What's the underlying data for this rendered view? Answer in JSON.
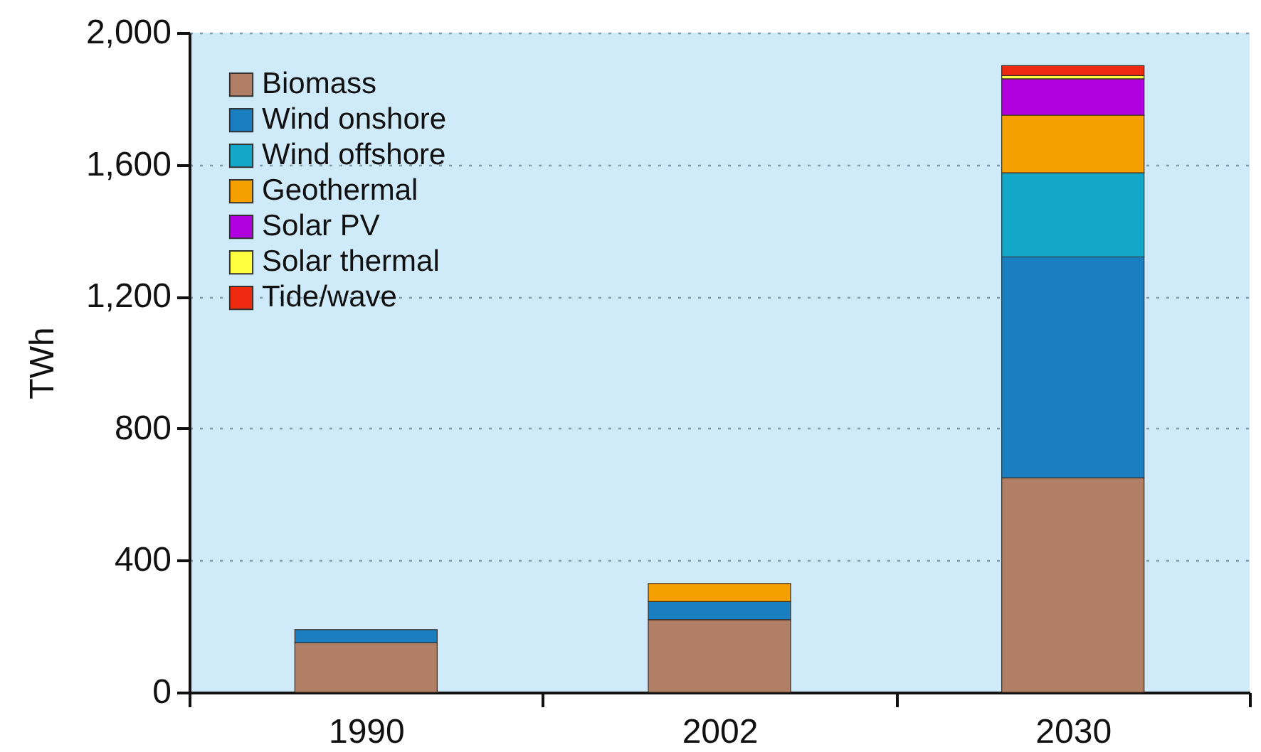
{
  "chart_data": {
    "type": "bar",
    "stacked": true,
    "ylabel": "TWh",
    "categories": [
      "1990",
      "2002",
      "2030"
    ],
    "ylim": [
      0,
      2000
    ],
    "yticks": [
      0,
      400,
      800,
      {
        "value": 1200,
        "label": "1,200"
      },
      {
        "value": 1600,
        "label": "1,600"
      },
      {
        "value": 2000,
        "label": "2,000"
      }
    ],
    "grid": "y",
    "legend": "top left",
    "series": [
      {
        "name": "Biomass",
        "color": "#b07f66",
        "values": [
          150,
          220,
          650
        ]
      },
      {
        "name": "Wind onshore",
        "color": "#1a7fc0",
        "values": [
          40,
          55,
          670
        ]
      },
      {
        "name": "Wind offshore",
        "color": "#14a8c8",
        "values": [
          null,
          null,
          255
        ]
      },
      {
        "name": "Geothermal",
        "color": "#f5a000",
        "values": [
          null,
          55,
          175
        ]
      },
      {
        "name": "Solar PV",
        "color": "#b000e0",
        "values": [
          null,
          null,
          110
        ]
      },
      {
        "name": "Solar thermal",
        "color": "#ffff40",
        "values": [
          null,
          null,
          10
        ]
      },
      {
        "name": "Tide/wave",
        "color": "#ee2a10",
        "values": [
          null,
          null,
          30
        ]
      }
    ]
  }
}
